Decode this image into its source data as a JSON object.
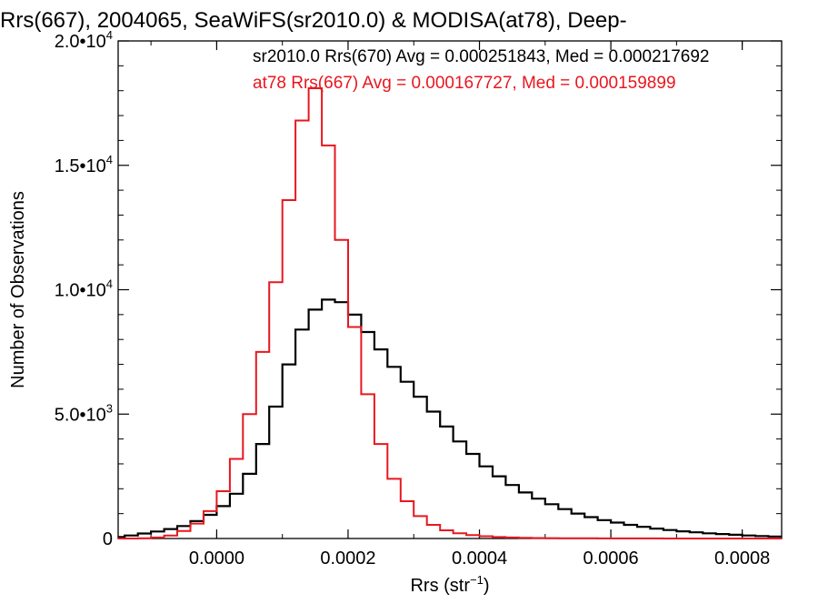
{
  "chart_data": {
    "type": "line",
    "title": "Rrs(667), 2004065, SeaWiFS(sr2010.0) & MODISA(at78), Deep-",
    "xlabel_base": "Rrs (str",
    "xlabel_exp": "−1",
    "xlabel_close": ")",
    "ylabel": "Number of Observations",
    "xlim": [
      -0.00015,
      0.00086
    ],
    "ylim": [
      0,
      20000
    ],
    "x_ticks": [
      {
        "value": 0.0,
        "label": "0.0000"
      },
      {
        "value": 0.0002,
        "label": "0.0002"
      },
      {
        "value": 0.0004,
        "label": "0.0004"
      },
      {
        "value": 0.0006,
        "label": "0.0006"
      },
      {
        "value": 0.0008,
        "label": "0.0008"
      }
    ],
    "y_ticks": [
      {
        "value": 0,
        "label": "0",
        "exp": ""
      },
      {
        "value": 5000,
        "label": "5.0•10",
        "exp": "3"
      },
      {
        "value": 10000,
        "label": "1.0•10",
        "exp": "4"
      },
      {
        "value": 15000,
        "label": "1.5•10",
        "exp": "4"
      },
      {
        "value": 20000,
        "label": "2.0•10",
        "exp": "4"
      }
    ],
    "series": [
      {
        "name": "sr2010.0 Rrs(670) Avg = 0.000251843, Med = 0.000217692",
        "color": "#000000",
        "x": [
          -0.00015,
          -0.00013,
          -0.00011,
          -9e-05,
          -7e-05,
          -5e-05,
          -3e-05,
          -1e-05,
          1e-05,
          3e-05,
          5e-05,
          7e-05,
          9e-05,
          0.00011,
          0.00013,
          0.00015,
          0.00017,
          0.00019,
          0.00021,
          0.00023,
          0.00025,
          0.00027,
          0.00029,
          0.00031,
          0.00033,
          0.00035,
          0.00037,
          0.00039,
          0.00041,
          0.00043,
          0.00045,
          0.00047,
          0.00049,
          0.00051,
          0.00053,
          0.00055,
          0.00057,
          0.00059,
          0.00061,
          0.00063,
          0.00065,
          0.00067,
          0.00069,
          0.00071,
          0.00073,
          0.00075,
          0.00077,
          0.00079,
          0.00081,
          0.00083,
          0.00085
        ],
        "y": [
          60,
          120,
          200,
          280,
          380,
          500,
          700,
          950,
          1300,
          1800,
          2600,
          3800,
          5300,
          7000,
          8400,
          9200,
          9600,
          9500,
          9000,
          8300,
          7600,
          6900,
          6300,
          5700,
          5100,
          4500,
          3900,
          3400,
          2900,
          2500,
          2150,
          1850,
          1600,
          1380,
          1180,
          1000,
          860,
          740,
          640,
          550,
          470,
          400,
          340,
          290,
          250,
          210,
          180,
          150,
          120,
          100,
          80
        ]
      },
      {
        "name": "at78 Rrs(667) Avg = 0.000167727, Med = 0.000159899",
        "color": "#e8171f",
        "x": [
          -0.00015,
          -0.00013,
          -0.00011,
          -9e-05,
          -7e-05,
          -5e-05,
          -3e-05,
          -1e-05,
          1e-05,
          3e-05,
          5e-05,
          7e-05,
          9e-05,
          0.00011,
          0.00013,
          0.00015,
          0.00017,
          0.00019,
          0.00021,
          0.00023,
          0.00025,
          0.00027,
          0.00029,
          0.00031,
          0.00033,
          0.00035,
          0.00037,
          0.00039,
          0.00041,
          0.00043,
          0.00045,
          0.00047,
          0.00049,
          0.00051,
          0.00053,
          0.00055,
          0.00057,
          0.00059,
          0.00061,
          0.00063,
          0.00065,
          0.00067,
          0.00069,
          0.00071,
          0.00073,
          0.00075,
          0.00077,
          0.00079,
          0.00081,
          0.00083,
          0.00085
        ],
        "y": [
          0,
          0,
          10,
          40,
          120,
          300,
          600,
          1100,
          1900,
          3200,
          5000,
          7500,
          10300,
          13600,
          16800,
          18100,
          15800,
          12000,
          8500,
          5800,
          3800,
          2400,
          1500,
          900,
          550,
          330,
          210,
          140,
          90,
          60,
          40,
          30,
          20,
          15,
          10,
          8,
          6,
          5,
          4,
          3,
          2,
          2,
          1,
          1,
          1,
          0,
          0,
          0,
          0,
          0,
          0
        ]
      }
    ],
    "grid": false,
    "legend": "top-right"
  }
}
